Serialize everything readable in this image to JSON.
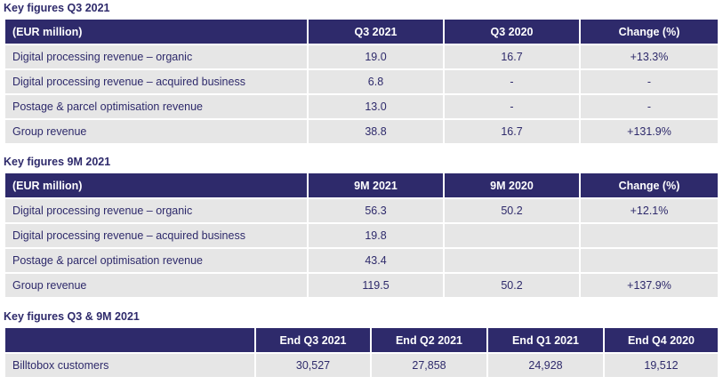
{
  "q3": {
    "title": "Key figures Q3 2021",
    "headers": [
      "(EUR million)",
      "Q3 2021",
      "Q3 2020",
      "Change (%)"
    ],
    "rows": [
      [
        "Digital processing revenue – organic",
        "19.0",
        "16.7",
        "+13.3%"
      ],
      [
        "Digital processing revenue – acquired business",
        "6.8",
        "-",
        "-"
      ],
      [
        "Postage & parcel optimisation revenue",
        "13.0",
        "-",
        "-"
      ],
      [
        "Group revenue",
        "38.8",
        "16.7",
        "+131.9%"
      ]
    ]
  },
  "nine_m": {
    "title": "Key figures 9M 2021",
    "headers": [
      "(EUR million)",
      "9M 2021",
      "9M 2020",
      "Change (%)"
    ],
    "rows": [
      [
        "Digital processing revenue – organic",
        "56.3",
        "50.2",
        "+12.1%"
      ],
      [
        "Digital processing revenue – acquired business",
        "19.8",
        "",
        ""
      ],
      [
        "Postage & parcel optimisation revenue",
        "43.4",
        "",
        ""
      ],
      [
        "Group revenue",
        "119.5",
        "50.2",
        "+137.9%"
      ]
    ]
  },
  "customers": {
    "title": "Key figures Q3 & 9M 2021",
    "headers": [
      "",
      "End Q3 2021",
      "End Q2 2021",
      "End Q1 2021",
      "End Q4 2020"
    ],
    "rows": [
      [
        "Billtobox customers",
        "30,527",
        "27,858",
        "24,928",
        "19,512"
      ]
    ]
  }
}
